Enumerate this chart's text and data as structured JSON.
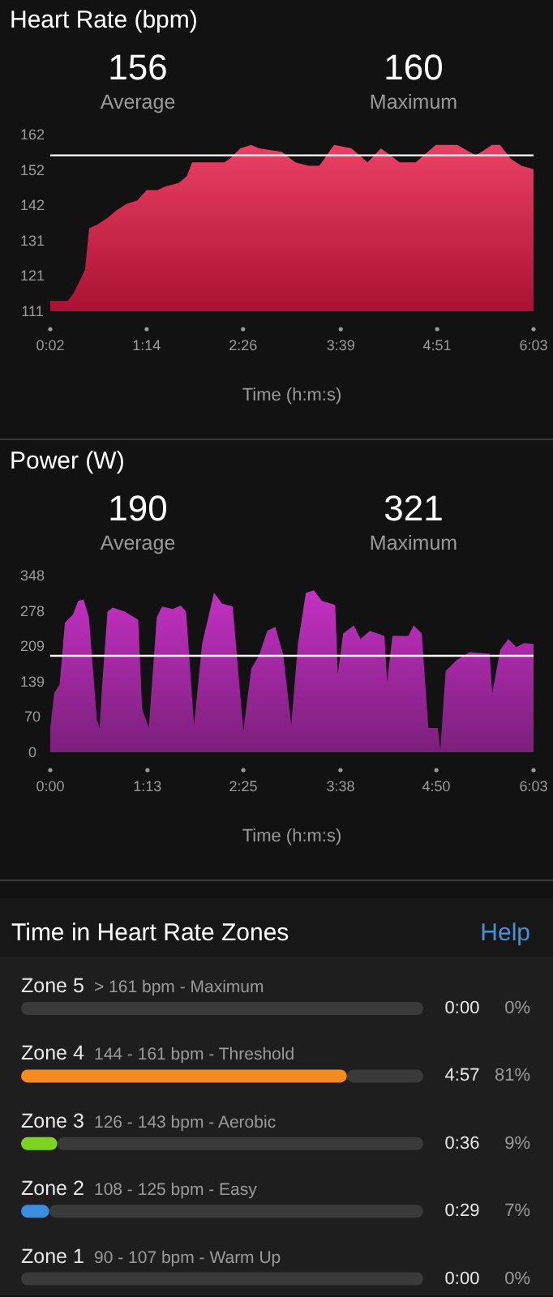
{
  "chart_data": [
    {
      "type": "area",
      "title": "Heart Rate (bpm)",
      "xlabel": "Time (h:m:s)",
      "color": "#e8254f",
      "annotations": [
        "156",
        "Average",
        "160",
        "Maximum"
      ],
      "x": [
        2,
        5,
        15,
        19,
        23,
        28,
        31,
        37,
        45,
        51,
        59,
        67,
        74,
        82,
        88,
        98,
        104,
        108,
        114,
        132,
        136,
        144,
        152,
        158,
        175,
        185,
        195,
        203,
        214,
        227,
        239,
        249,
        263,
        275,
        290,
        306,
        320,
        332,
        338,
        346,
        354,
        363
      ],
      "values": [
        114,
        114,
        114,
        116,
        119,
        123,
        135,
        136,
        138,
        140,
        142,
        143,
        146,
        146,
        147,
        148,
        150,
        154,
        154,
        154,
        155,
        158,
        159,
        158,
        157,
        154,
        153,
        153,
        159,
        158,
        154,
        158,
        154,
        154,
        159,
        159,
        156,
        159,
        159,
        155,
        153,
        152
      ],
      "xlim": [
        2,
        363
      ],
      "xticks": [
        {
          "value": 2,
          "label": "0:02"
        },
        {
          "value": 74,
          "label": "1:14"
        },
        {
          "value": 146,
          "label": "2:26"
        },
        {
          "value": 219,
          "label": "3:39"
        },
        {
          "value": 291,
          "label": "4:51"
        },
        {
          "value": 363,
          "label": "6:03"
        }
      ],
      "ylim": [
        111,
        162
      ],
      "yticks": [
        111,
        {
          "value": 121.2,
          "label": "121"
        },
        {
          "value": 131.4,
          "label": "131"
        },
        {
          "value": 141.6,
          "label": "142"
        },
        {
          "value": 151.8,
          "label": "152"
        },
        162
      ],
      "ref_lines": [
        {
          "axis": "y",
          "value": 156,
          "color": "#ffffff"
        }
      ]
    },
    {
      "type": "area",
      "title": "Power (W)",
      "xlabel": "Time (h:m:s)",
      "color": "#b02cb0",
      "annotations": [
        "190",
        "Average",
        "321",
        "Maximum"
      ],
      "x": [
        0,
        3,
        7,
        11,
        17,
        21,
        25,
        29,
        35,
        37,
        39,
        43,
        47,
        56,
        66,
        69,
        74,
        80,
        84,
        92,
        98,
        102,
        108,
        114,
        123,
        129,
        137,
        145,
        151,
        157,
        163,
        169,
        175,
        181,
        186,
        192,
        198,
        204,
        214,
        216,
        220,
        228,
        233,
        240,
        251,
        253,
        257,
        269,
        273,
        279,
        284,
        291,
        293,
        297,
        305,
        315,
        330,
        332,
        338,
        344,
        350,
        356,
        363
      ],
      "values": [
        48,
        117,
        133,
        255,
        271,
        298,
        301,
        266,
        64,
        48,
        133,
        277,
        285,
        277,
        261,
        85,
        48,
        266,
        287,
        282,
        289,
        277,
        53,
        213,
        314,
        293,
        287,
        43,
        165,
        192,
        239,
        247,
        192,
        53,
        213,
        314,
        319,
        298,
        290,
        154,
        234,
        250,
        223,
        239,
        229,
        138,
        229,
        229,
        250,
        234,
        48,
        48,
        5,
        160,
        181,
        197,
        194,
        117,
        202,
        223,
        207,
        215,
        213
      ],
      "xlim": [
        0,
        363
      ],
      "xticks": [
        {
          "value": 0,
          "label": "0:00"
        },
        {
          "value": 73,
          "label": "1:13"
        },
        {
          "value": 145,
          "label": "2:25"
        },
        {
          "value": 218,
          "label": "3:38"
        },
        {
          "value": 290,
          "label": "4:50"
        },
        {
          "value": 363,
          "label": "6:03"
        }
      ],
      "ylim": [
        0,
        348
      ],
      "yticks": [
        0,
        {
          "value": 69.6,
          "label": "70"
        },
        {
          "value": 139.2,
          "label": "139"
        },
        {
          "value": 208.8,
          "label": "209"
        },
        {
          "value": 278.4,
          "label": "278"
        },
        348
      ],
      "ref_lines": [
        {
          "axis": "y",
          "value": 190,
          "color": "#ffffff"
        }
      ]
    },
    {
      "type": "bar",
      "orientation": "horizontal",
      "title": "Time in Heart Rate Zones",
      "tick_labels": false,
      "categories": [
        "Zone 5",
        "Zone 4",
        "Zone 3",
        "Zone 2",
        "Zone 1"
      ],
      "stacked": true,
      "series": [
        {
          "colors": [
            null,
            "#f68b1f",
            "#7ed321",
            "#3b8de0",
            null
          ],
          "values": [
            0,
            81,
            9,
            7,
            0
          ],
          "value_labels": [
            "0%",
            "81%",
            "9%",
            "7%",
            "0%"
          ]
        },
        {
          "color": "#3a3a3a",
          "values": [
            100,
            19,
            91,
            93,
            100
          ]
        }
      ],
      "xlim": [
        0,
        100
      ],
      "annotations": [
        "Help",
        "> 161 bpm - Maximum",
        "0:00",
        "144 - 161 bpm - Threshold",
        "4:57",
        "126 - 143 bpm - Aerobic",
        "0:36",
        "108 - 125 bpm - Easy",
        "0:29",
        "90 - 107 bpm - Warm Up",
        "0:00"
      ]
    }
  ]
}
